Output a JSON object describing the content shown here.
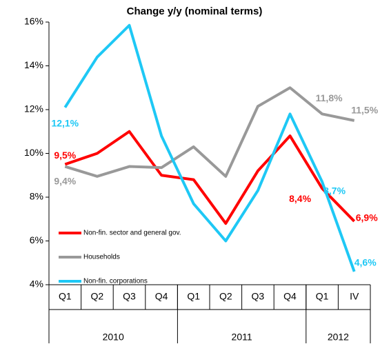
{
  "chart_data": {
    "type": "line",
    "title": "Change y/y (nominal terms)",
    "categories": [
      "Q1",
      "Q2",
      "Q3",
      "Q4",
      "Q1",
      "Q2",
      "Q3",
      "Q4",
      "Q1",
      "IV"
    ],
    "groups": [
      {
        "label": "2010",
        "count": 4
      },
      {
        "label": "2011",
        "count": 4
      },
      {
        "label": "2012",
        "count": 2
      }
    ],
    "ylim": [
      4,
      16
    ],
    "yticks": [
      {
        "value": 4,
        "label": "4%"
      },
      {
        "value": 6,
        "label": "6%"
      },
      {
        "value": 8,
        "label": "8%"
      },
      {
        "value": 10,
        "label": "10%"
      },
      {
        "value": 12,
        "label": "12%"
      },
      {
        "value": 14,
        "label": "14%"
      },
      {
        "value": 16,
        "label": "16%"
      }
    ],
    "grid": false,
    "legend": "lower-left",
    "series": [
      {
        "name": "Non-fin. sector and general gov.",
        "color": "#ff0000",
        "values": [
          9.5,
          10.0,
          11.0,
          9.0,
          8.8,
          6.8,
          9.2,
          10.8,
          8.4,
          6.9
        ],
        "value_labels": [
          "9,5%",
          null,
          null,
          null,
          null,
          null,
          null,
          null,
          "8,4%",
          "6,9%"
        ]
      },
      {
        "name": "Households",
        "color": "#999999",
        "values": [
          9.4,
          8.95,
          9.4,
          9.35,
          10.3,
          8.95,
          12.15,
          13.0,
          11.8,
          11.5
        ],
        "value_labels": [
          "9,4%",
          null,
          null,
          null,
          null,
          null,
          null,
          null,
          "11,8%",
          "11,5%"
        ]
      },
      {
        "name": "Non-fin. corporations",
        "color": "#1ec8f5",
        "values": [
          12.1,
          14.4,
          15.85,
          10.8,
          7.7,
          6.0,
          8.3,
          11.8,
          8.7,
          4.6
        ],
        "value_labels": [
          "12,1%",
          null,
          null,
          null,
          null,
          null,
          null,
          null,
          "8,7%",
          "4,6%"
        ]
      }
    ]
  }
}
